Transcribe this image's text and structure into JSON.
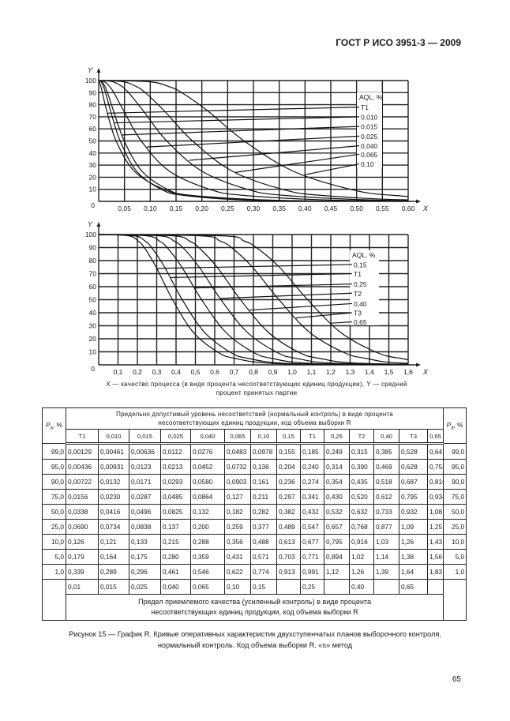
{
  "header": "ГОСТ Р ИСО 3951-3 — 2009",
  "page_number": "65",
  "figure_caption": {
    "line1": "Рисунок 15 — График R. Кривые оперативных характеристик двухступенчатых планов выборочного контроля,",
    "line2": "нормальный контроль. Код объема выборки R. «s» метод"
  },
  "axis_caption": {
    "x_symbol": "X",
    "x_text": " — качество процесса (в виде процента  несоответствующих  единиц  продукции),  ",
    "y_symbol": "Y",
    "y_text": " — средний",
    "line2": "процент принятых партии"
  },
  "chart_data": [
    {
      "type": "line",
      "xlabel": "X",
      "ylabel": "Y",
      "xlim": [
        0,
        0.6
      ],
      "ylim": [
        0,
        100
      ],
      "grid": true,
      "legend_title": "AQL, %",
      "legend_placement": "right",
      "origin_label": "0",
      "x_ticks": [
        "0,05",
        "0,10",
        "0,15",
        "0,20",
        "0,25",
        "0,30",
        "0,35",
        "0,40",
        "0,45",
        "0,50",
        "0,55",
        "0,60"
      ],
      "x_tick_values": [
        0.05,
        0.1,
        0.15,
        0.2,
        0.25,
        0.3,
        0.35,
        0.4,
        0.45,
        0.5,
        0.55,
        0.6
      ],
      "y_ticks": [
        "10",
        "20",
        "30",
        "40",
        "50",
        "60",
        "70",
        "80",
        "90",
        "100"
      ],
      "y_tick_values": [
        10,
        20,
        30,
        40,
        50,
        60,
        70,
        80,
        90,
        100
      ],
      "y": [
        99,
        95,
        90,
        75,
        50,
        25,
        10,
        5,
        1
      ],
      "series": [
        {
          "name": "T1",
          "x": [
            0.00129,
            0.00436,
            0.00722,
            0.0156,
            0.0338,
            0.069,
            0.126,
            0.179,
            0.339
          ]
        },
        {
          "name": "0,010",
          "x": [
            0.00461,
            0.00931,
            0.0132,
            0.023,
            0.0416,
            0.0734,
            0.121,
            0.164,
            0.289
          ]
        },
        {
          "name": "0,015",
          "x": [
            0.00636,
            0.0123,
            0.0171,
            0.0287,
            0.0496,
            0.0838,
            0.133,
            0.175,
            0.296
          ]
        },
        {
          "name": "0,025",
          "x": [
            0.0112,
            0.0213,
            0.0293,
            0.0485,
            0.0825,
            0.137,
            0.215,
            0.28,
            0.461
          ]
        },
        {
          "name": "0,040",
          "x": [
            0.0276,
            0.0452,
            0.058,
            0.0864,
            0.132,
            0.2,
            0.288,
            0.359,
            0.546
          ]
        },
        {
          "name": "0,065",
          "x": [
            0.0483,
            0.0732,
            0.0903,
            0.127,
            0.182,
            0.259,
            0.356,
            0.431,
            0.622
          ]
        },
        {
          "name": "0,10",
          "x": [
            0.0978,
            0.136,
            0.161,
            0.211,
            0.282,
            0.377,
            0.488,
            0.571,
            0.774
          ]
        }
      ]
    },
    {
      "type": "line",
      "xlabel": "X",
      "ylabel": "Y",
      "xlim": [
        0,
        1.6
      ],
      "ylim": [
        0,
        100
      ],
      "grid": true,
      "legend_title": "AQL, %",
      "legend_placement": "right",
      "origin_label": "0",
      "x_ticks": [
        "0,1",
        "0,2",
        "0,3",
        "0,4",
        "0,5",
        "0,6",
        "0,7",
        "0,8",
        "0,9",
        "1,0",
        "1,1",
        "1,2",
        "1,3",
        "1,4",
        "1,5",
        "1,6"
      ],
      "x_tick_values": [
        0.1,
        0.2,
        0.3,
        0.4,
        0.5,
        0.6,
        0.7,
        0.8,
        0.9,
        1.0,
        1.1,
        1.2,
        1.3,
        1.4,
        1.5,
        1.6
      ],
      "y_ticks": [
        "10",
        "20",
        "30",
        "40",
        "50",
        "60",
        "70",
        "80",
        "90",
        "100"
      ],
      "y_tick_values": [
        10,
        20,
        30,
        40,
        50,
        60,
        70,
        80,
        90,
        100
      ],
      "y": [
        99,
        95,
        90,
        75,
        50,
        25,
        10,
        5,
        1
      ],
      "series": [
        {
          "name": "0,15",
          "x": [
            0.155,
            0.204,
            0.236,
            0.297,
            0.382,
            0.489,
            0.613,
            0.703,
            0.913
          ]
        },
        {
          "name": "T1",
          "x": [
            0.185,
            0.24,
            0.274,
            0.341,
            0.432,
            0.547,
            0.677,
            0.771,
            0.991
          ]
        },
        {
          "name": "0,25",
          "x": [
            0.249,
            0.314,
            0.354,
            0.43,
            0.532,
            0.657,
            0.795,
            0.894,
            1.12
          ]
        },
        {
          "name": "T2",
          "x": [
            0.315,
            0.39,
            0.435,
            0.52,
            0.632,
            0.768,
            0.916,
            1.02,
            1.26
          ]
        },
        {
          "name": "0,40",
          "x": [
            0.385,
            0.469,
            0.518,
            0.612,
            0.733,
            0.877,
            1.03,
            1.14,
            1.39
          ]
        },
        {
          "name": "T3",
          "x": [
            0.528,
            0.628,
            0.687,
            0.795,
            0.932,
            1.09,
            1.26,
            1.38,
            1.64
          ]
        },
        {
          "name": "0,65",
          "x": [
            0.641,
            0.752,
            0.816,
            0.934,
            1.08,
            1.25,
            1.43,
            1.56,
            1.83
          ]
        }
      ]
    }
  ],
  "table": {
    "pa_label": {
      "p": "P",
      "sub": "a",
      "rest": ", %"
    },
    "normal_header": {
      "line1": "Предельно допустимый уровень несоответствий (нормальный контроль) в виде процента",
      "line2": "несоответствующих единиц продукции, код объема выборки R"
    },
    "columns": [
      "T1",
      "0,010",
      "0,015",
      "0,025",
      "0,040",
      "0,065",
      "0,10",
      "0,15",
      "T1",
      "0,25",
      "T2",
      "0,40",
      "T3",
      "0,65"
    ],
    "rows": [
      {
        "pa": "99,0",
        "values": [
          "0,00129",
          "0,00461",
          "0,00636",
          "0,0112",
          "0,0276",
          "0,0483",
          "0,0978",
          "0,155",
          "0,185",
          "0,249",
          "0,315",
          "0,385",
          "0,528",
          "0,641"
        ]
      },
      {
        "pa": "95,0",
        "values": [
          "0,00436",
          "0,00931",
          "0,0123",
          "0,0213",
          "0,0452",
          "0,0732",
          "0,136",
          "0,204",
          "0,240",
          "0,314",
          "0,390",
          "0,469",
          "0,628",
          "0,752"
        ]
      },
      {
        "pa": "90,0",
        "values": [
          "0,00722",
          "0,0132",
          "0,0171",
          "0,0293",
          "0,0580",
          "0,0903",
          "0,161",
          "0,236",
          "0,274",
          "0,354",
          "0,435",
          "0,518",
          "0,687",
          "0,816"
        ]
      },
      {
        "pa": "75,0",
        "values": [
          "0,0156",
          "0,0230",
          "0,0287",
          "0,0485",
          "0,0864",
          "0,127",
          "0,211",
          "0,297",
          "0,341",
          "0,430",
          "0,520",
          "0,612",
          "0,795",
          "0,934"
        ]
      },
      {
        "pa": "50,0",
        "values": [
          "0,0338",
          "0,0416",
          "0,0496",
          "0,0825",
          "0,132",
          "0,182",
          "0,282",
          "0,382",
          "0,432",
          "0,532",
          "0,632",
          "0,733",
          "0,932",
          "1,08"
        ]
      },
      {
        "pa": "25,0",
        "values": [
          "0,0690",
          "0,0734",
          "0,0838",
          "0,137",
          "0,200",
          "0,259",
          "0,377",
          "0,489",
          "0,547",
          "0,657",
          "0,768",
          "0,877",
          "1,09",
          "1,25"
        ]
      },
      {
        "pa": "10,0",
        "values": [
          "0,126",
          "0,121",
          "0,133",
          "0,215",
          "0,288",
          "0,356",
          "0,488",
          "0,613",
          "0,677",
          "0,795",
          "0,916",
          "1,03",
          "1,26",
          "1,43"
        ]
      },
      {
        "pa": "5,0",
        "values": [
          "0,179",
          "0,164",
          "0,175",
          "0,280",
          "0,359",
          "0,431",
          "0,571",
          "0,703",
          "0,771",
          "0,894",
          "1,02",
          "1,14",
          "1,38",
          "1,56"
        ]
      },
      {
        "pa": "1,0",
        "values": [
          "0,339",
          "0,289",
          "0,296",
          "0,461",
          "0,546",
          "0,622",
          "0,774",
          "0,913",
          "0,991",
          "1,12",
          "1,26",
          "1,39",
          "1,64",
          "1,83"
        ]
      }
    ],
    "tightened_aql": [
      "0,01",
      "0,015",
      "0,025",
      "0,040",
      "0,065",
      "0,10",
      "0,15",
      "",
      "0,25",
      "",
      "0,40",
      "",
      "0,65",
      ""
    ],
    "tightened_footer": {
      "line1": "Предел приемлемого качества (усиленный контроль) в виде процента",
      "line2": "несоответствующих единиц продукции, код объема выборки R"
    }
  }
}
